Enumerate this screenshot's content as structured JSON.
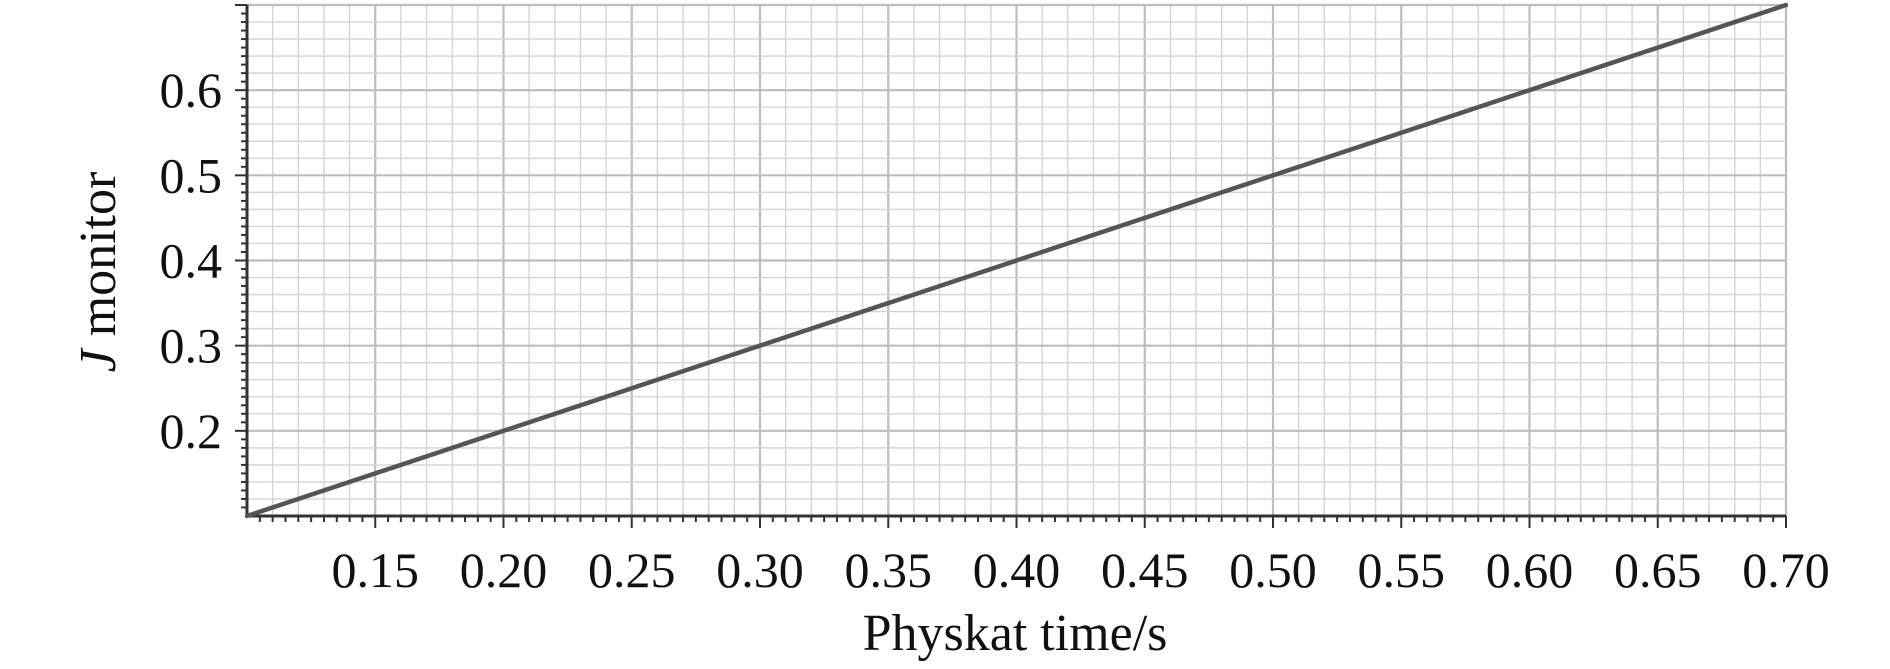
{
  "chart_data": {
    "type": "line",
    "title": "",
    "xlabel": "Physkat time/s",
    "ylabel_italic": "J",
    "ylabel_rest": " monitor",
    "xlim": [
      0.1,
      0.7
    ],
    "ylim": [
      0.1,
      0.7
    ],
    "x_ticks": [
      0.15,
      0.2,
      0.25,
      0.3,
      0.35,
      0.4,
      0.45,
      0.5,
      0.55,
      0.6,
      0.65,
      0.7
    ],
    "x_tick_labels": [
      "0.15",
      "0.20",
      "0.25",
      "0.30",
      "0.35",
      "0.40",
      "0.45",
      "0.50",
      "0.55",
      "0.60",
      "0.65",
      "0.70"
    ],
    "y_ticks": [
      0.2,
      0.3,
      0.4,
      0.5,
      0.6
    ],
    "y_tick_labels": [
      "0.2",
      "0.3",
      "0.4",
      "0.5",
      "0.6"
    ],
    "grid": true,
    "line_color": "#555555",
    "grid_color": "#d4d4d4",
    "series": [
      {
        "x": [
          0.1,
          0.7
        ],
        "y": [
          0.1,
          0.7
        ]
      }
    ]
  }
}
